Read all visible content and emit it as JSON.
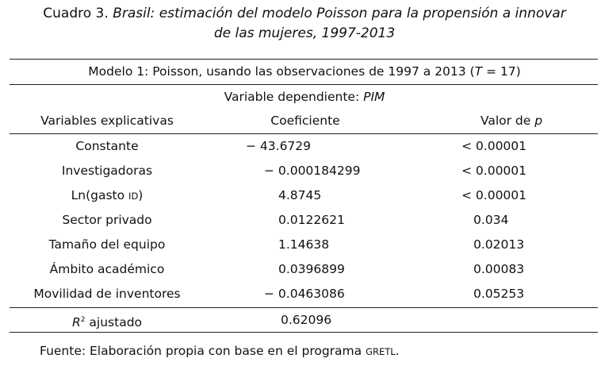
{
  "caption": {
    "prefix": "Cuadro 3. ",
    "line1_italic": "Brasil: estimación del modelo Poisson para la propensión a innovar",
    "line2_italic": "de las mujeres, 1997-2013"
  },
  "model_title": {
    "text": "Modelo 1: Poisson, usando las observaciones de 1997 a 2013 (",
    "t_symbol": "T",
    "t_value": " = 17)"
  },
  "dependent": {
    "label": "Variable dependiente: ",
    "value": "PIM"
  },
  "headers": {
    "variables": "Variables explicativas",
    "coef": "Coeficiente",
    "pvalue_prefix": "Valor de ",
    "pvalue_symbol": "p"
  },
  "rows": [
    {
      "variable": "Constante",
      "coef": "− 43.6729",
      "pvalue": "< 0.00001"
    },
    {
      "variable": "Investigadoras",
      "coef": "− 0.000184299",
      "pvalue": "< 0.00001"
    },
    {
      "variable_prefix": "Ln(gasto ",
      "variable_sc": "ID",
      "variable_suffix": ")",
      "coef": "4.8745",
      "pvalue": "< 0.00001"
    },
    {
      "variable": "Sector privado",
      "coef": "0.0122621",
      "pvalue": "0.034"
    },
    {
      "variable": "Tamaño del equipo",
      "coef": "1.14638",
      "pvalue": "0.02013"
    },
    {
      "variable": "Ámbito académico",
      "coef": "0.0396899",
      "pvalue": "0.00083"
    },
    {
      "variable": "Movilidad de inventores",
      "coef": "− 0.0463086",
      "pvalue": "0.05253"
    }
  ],
  "r2": {
    "symbol": "R",
    "sup": "2",
    "label": " ajustado",
    "value": "0.62096"
  },
  "footer": {
    "text": "Fuente: Elaboración propia con base en el programa ",
    "program": "GRETL",
    "end": "."
  }
}
